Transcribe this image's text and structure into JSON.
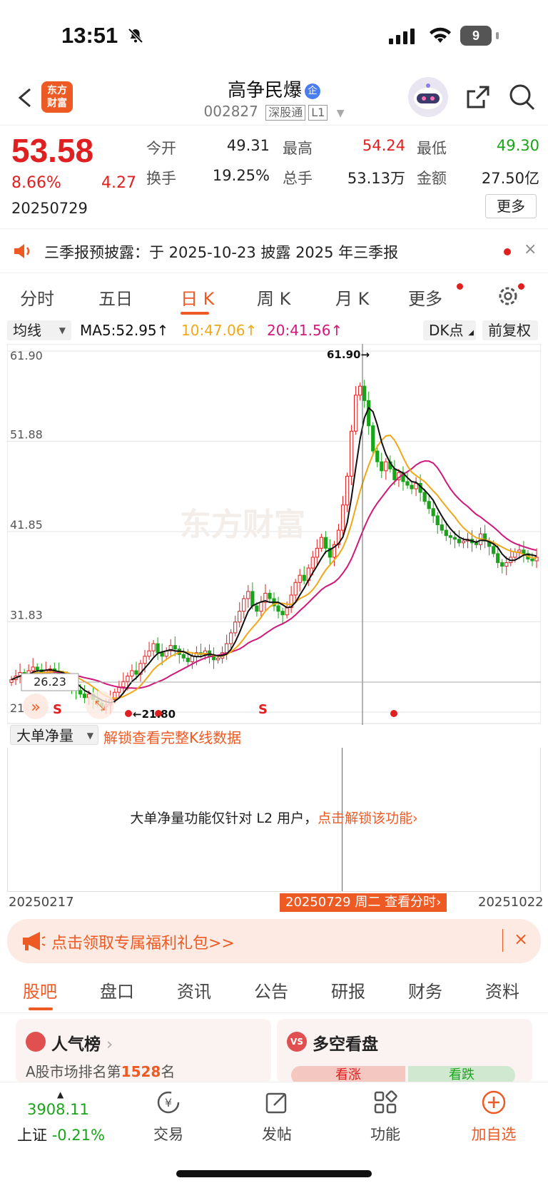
{
  "status": {
    "time": "13:51",
    "battery": "9"
  },
  "header": {
    "logo_line1": "东方",
    "logo_line2": "财富",
    "stock_name": "高争民爆",
    "name_badge": "企",
    "code": "002827",
    "tag1": "深股通",
    "tag2": "L1"
  },
  "quote": {
    "price": "53.58",
    "change_pct": "8.66%",
    "change": "4.27",
    "date": "20250729",
    "fields": [
      {
        "label": "今开",
        "value": "49.31",
        "color": "#222222"
      },
      {
        "label": "最高",
        "value": "54.24",
        "color": "#e02020"
      },
      {
        "label": "最低",
        "value": "49.30",
        "color": "#19a519"
      },
      {
        "label": "换手",
        "value": "19.25%",
        "color": "#222222"
      },
      {
        "label": "总手",
        "value": "53.13万",
        "color": "#222222"
      },
      {
        "label": "金额",
        "value": "27.50亿",
        "color": "#222222"
      }
    ],
    "more": "更多"
  },
  "notice": {
    "text": "三季报预披露：于 2025-10-23 披露 2025 年三季报",
    "close": "×"
  },
  "tabs": [
    "分时",
    "五日",
    "日 K",
    "周 K",
    "月 K",
    "更多"
  ],
  "active_tab": "日 K",
  "ma_row": {
    "ma_select": "均线",
    "ma5": "MA5:52.95",
    "ma10": "10:47.06",
    "ma20": "20:41.56",
    "dk": "DK点",
    "adjust": "前复权"
  },
  "chart_data": {
    "type": "candlestick",
    "y_ticks": [
      "61.90",
      "51.88",
      "41.85",
      "31.83",
      "21.80"
    ],
    "ylim": [
      21.8,
      61.9
    ],
    "annotations": {
      "high": "61.90",
      "low": "21.80",
      "current_left": "26.23",
      "signals": [
        "S",
        "S"
      ]
    },
    "watermark": "东方财富",
    "x_start": "20250217",
    "x_end": "20251022",
    "cursor_label": "20250729 周二 查看分时",
    "closes": [
      25.4,
      25.8,
      26.2,
      26.0,
      26.4,
      26.8,
      26.5,
      26.2,
      26.4,
      26.6,
      26.3,
      26.0,
      25.6,
      25.0,
      24.6,
      24.2,
      23.8,
      23.4,
      23.8,
      23.2,
      22.8,
      22.4,
      22.6,
      23.2,
      24.0,
      24.6,
      25.2,
      25.8,
      26.4,
      26.0,
      27.2,
      28.0,
      28.6,
      29.4,
      28.4,
      28.0,
      28.6,
      29.2,
      28.8,
      28.2,
      27.8,
      27.4,
      28.0,
      28.4,
      28.2,
      28.6,
      28.0,
      27.6,
      27.8,
      28.4,
      29.4,
      30.6,
      31.8,
      33.0,
      34.4,
      35.2,
      33.6,
      33.0,
      34.0,
      35.0,
      34.4,
      33.6,
      33.0,
      32.6,
      33.4,
      34.8,
      36.2,
      37.0,
      36.4,
      37.8,
      39.0,
      40.0,
      41.2,
      40.0,
      39.0,
      40.4,
      42.0,
      44.8,
      48.0,
      53.0,
      57.0,
      58.0,
      56.4,
      53.6,
      50.8,
      49.6,
      48.6,
      49.6,
      48.8,
      47.6,
      48.4,
      47.4,
      47.0,
      46.6,
      47.2,
      46.2,
      45.2,
      44.4,
      43.6,
      42.6,
      42.0,
      41.4,
      41.2,
      41.0,
      40.6,
      40.8,
      41.0,
      40.6,
      40.4,
      41.6,
      40.8,
      40.2,
      39.4,
      38.4,
      38.0,
      38.4,
      39.0,
      39.6,
      39.8,
      39.4,
      38.8,
      38.6,
      39.0
    ]
  },
  "sub_chart": {
    "select": "大单净量",
    "unlock_link": "解锁查看完整K线数据",
    "message": "大单净量功能仅针对 L2 用户，",
    "message_link": "点击解锁该功能›"
  },
  "promo": {
    "text": "点击领取专属福利礼包>>",
    "close": "×"
  },
  "bottom_tabs": [
    "股吧",
    "盘口",
    "资讯",
    "公告",
    "研报",
    "财务",
    "资料"
  ],
  "cards": {
    "popularity_title": "人气榜",
    "rank_text": "A股市场排名第",
    "rank_value": "1528",
    "rank_suffix": "名",
    "vs_badge": "VS",
    "bull_bear_title": "多空看盘",
    "bull": "看涨",
    "bear": "看跌"
  },
  "bottom_bar": {
    "index_value": "3908.11",
    "index_name": "上证",
    "index_change": "-0.21%",
    "trade": "交易",
    "post": "发帖",
    "function": "功能",
    "add_watch": "加自选"
  }
}
